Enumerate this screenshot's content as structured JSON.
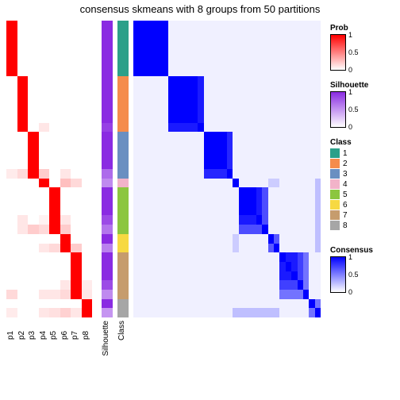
{
  "title": "consensus skmeans with 8 groups from 50 partitions",
  "colors": {
    "prob_scale": [
      "#ffffff",
      "#ff0000"
    ],
    "sil_scale": [
      "#ffffff",
      "#8a2be2"
    ],
    "cons_scale": [
      "#ffffff",
      "#0000ff"
    ],
    "classes": {
      "1": "#2ca089",
      "2": "#f58c4c",
      "3": "#6a8fc1",
      "4": "#f2b3c9",
      "5": "#8cc63f",
      "6": "#f7d942",
      "7": "#c69c6d",
      "8": "#a6a6a6"
    }
  },
  "group_sizes": [
    6,
    6,
    5,
    1,
    5,
    2,
    5,
    2
  ],
  "n_samples": 32,
  "p_labels": [
    "p1",
    "p2",
    "p3",
    "p4",
    "p5",
    "p6",
    "p7",
    "p8"
  ],
  "anno_labels": {
    "sil": "Silhouette",
    "class": "Class"
  },
  "prob_matrix": {
    "note": "rows grouped by class; values 0-1 along 8 columns p1..p8",
    "diag_value": 1.0,
    "offdiag_rows": [
      [
        1,
        0,
        0,
        0,
        0,
        0,
        0,
        0
      ],
      [
        1,
        0,
        0,
        0,
        0,
        0,
        0,
        0
      ],
      [
        1,
        0,
        0,
        0,
        0,
        0,
        0,
        0
      ],
      [
        1,
        0,
        0,
        0,
        0,
        0,
        0,
        0
      ],
      [
        1,
        0,
        0,
        0,
        0,
        0,
        0,
        0
      ],
      [
        1,
        0,
        0,
        0,
        0,
        0,
        0,
        0
      ],
      [
        0,
        1,
        0,
        0,
        0,
        0,
        0,
        0
      ],
      [
        0,
        1,
        0,
        0,
        0,
        0,
        0,
        0
      ],
      [
        0,
        1,
        0,
        0,
        0,
        0,
        0,
        0
      ],
      [
        0,
        1,
        0,
        0,
        0,
        0,
        0,
        0
      ],
      [
        0,
        1,
        0,
        0,
        0,
        0,
        0,
        0
      ],
      [
        0,
        1,
        0,
        0.1,
        0,
        0,
        0,
        0
      ],
      [
        0,
        0,
        1,
        0,
        0,
        0,
        0,
        0
      ],
      [
        0,
        0,
        1,
        0,
        0,
        0,
        0,
        0
      ],
      [
        0,
        0,
        1,
        0,
        0,
        0,
        0,
        0
      ],
      [
        0,
        0,
        1,
        0,
        0,
        0,
        0,
        0
      ],
      [
        0.08,
        0.15,
        1,
        0.2,
        0,
        0.1,
        0,
        0
      ],
      [
        0,
        0,
        0,
        1,
        0,
        0.25,
        0.15,
        0
      ],
      [
        0,
        0,
        0,
        0,
        1,
        0,
        0,
        0
      ],
      [
        0,
        0,
        0,
        0,
        1,
        0,
        0,
        0
      ],
      [
        0,
        0,
        0,
        0,
        1,
        0,
        0,
        0
      ],
      [
        0,
        0.1,
        0,
        0.05,
        1,
        0.1,
        0,
        0
      ],
      [
        0,
        0.1,
        0.2,
        0.15,
        1,
        0.2,
        0,
        0
      ],
      [
        0,
        0,
        0,
        0,
        0,
        1,
        0,
        0
      ],
      [
        0,
        0,
        0,
        0.1,
        0.15,
        1,
        0.2,
        0
      ],
      [
        0,
        0,
        0,
        0,
        0,
        0,
        1,
        0
      ],
      [
        0,
        0,
        0,
        0,
        0,
        0,
        1,
        0
      ],
      [
        0,
        0,
        0,
        0,
        0,
        0,
        1,
        0
      ],
      [
        0,
        0,
        0,
        0,
        0,
        0.1,
        1,
        0.08
      ],
      [
        0.15,
        0,
        0,
        0.1,
        0.1,
        0.15,
        1,
        0.1
      ],
      [
        0,
        0,
        0,
        0,
        0,
        0,
        0,
        1
      ],
      [
        0.08,
        0,
        0,
        0.1,
        0.12,
        0.18,
        0.1,
        1
      ]
    ]
  },
  "silhouette": [
    1,
    1,
    1,
    1,
    1,
    1,
    1,
    1,
    1,
    1,
    1,
    0.9,
    1,
    1,
    1,
    1,
    0.7,
    0.55,
    1,
    1,
    1,
    0.85,
    0.65,
    1,
    0.6,
    1,
    1,
    1,
    0.85,
    0.55,
    1,
    0.5
  ],
  "consensus_blocks": [
    {
      "class": 1,
      "block": [
        [
          1,
          1,
          1,
          1,
          1,
          1
        ],
        [
          1,
          1,
          1,
          1,
          1,
          1
        ],
        [
          1,
          1,
          1,
          1,
          1,
          1
        ],
        [
          1,
          1,
          1,
          1,
          1,
          1
        ],
        [
          1,
          1,
          1,
          1,
          1,
          1
        ],
        [
          1,
          1,
          1,
          1,
          1,
          1
        ]
      ]
    },
    {
      "class": 2,
      "block": [
        [
          1,
          1,
          1,
          1,
          1,
          0.9
        ],
        [
          1,
          1,
          1,
          1,
          1,
          0.9
        ],
        [
          1,
          1,
          1,
          1,
          1,
          0.9
        ],
        [
          1,
          1,
          1,
          1,
          1,
          0.9
        ],
        [
          1,
          1,
          1,
          1,
          1,
          0.9
        ],
        [
          0.9,
          0.9,
          0.9,
          0.9,
          0.9,
          1
        ]
      ]
    },
    {
      "class": 3,
      "block": [
        [
          1,
          1,
          1,
          1,
          0.85
        ],
        [
          1,
          1,
          1,
          1,
          0.85
        ],
        [
          1,
          1,
          1,
          1,
          0.85
        ],
        [
          1,
          1,
          1,
          1,
          0.85
        ],
        [
          0.85,
          0.85,
          0.85,
          0.85,
          1
        ]
      ]
    },
    {
      "class": 4,
      "block": [
        [
          1
        ]
      ]
    },
    {
      "class": 5,
      "block": [
        [
          1,
          1,
          1,
          0.9,
          0.7
        ],
        [
          1,
          1,
          1,
          0.9,
          0.7
        ],
        [
          1,
          1,
          1,
          0.9,
          0.7
        ],
        [
          0.9,
          0.9,
          0.9,
          1,
          0.7
        ],
        [
          0.7,
          0.7,
          0.7,
          0.7,
          1
        ]
      ]
    },
    {
      "class": 6,
      "block": [
        [
          1,
          0.65
        ],
        [
          0.65,
          1
        ]
      ]
    },
    {
      "class": 7,
      "block": [
        [
          1,
          0.9,
          0.9,
          0.75,
          0.55
        ],
        [
          0.9,
          1,
          0.9,
          0.75,
          0.55
        ],
        [
          0.9,
          0.9,
          1,
          0.75,
          0.55
        ],
        [
          0.75,
          0.75,
          0.75,
          1,
          0.55
        ],
        [
          0.55,
          0.55,
          0.55,
          0.55,
          1
        ]
      ]
    },
    {
      "class": 8,
      "block": [
        [
          1,
          0.55
        ],
        [
          0.55,
          1
        ]
      ]
    }
  ],
  "off_block_faint": 0.06,
  "cross_hints": [
    {
      "r": 31,
      "cols": [
        17,
        18,
        19,
        20,
        21,
        22,
        23,
        24
      ],
      "v": 0.25
    },
    {
      "r": 17,
      "cols": [
        23,
        24
      ],
      "v": 0.2
    }
  ],
  "legends": {
    "prob": {
      "title": "Prob",
      "ticks": [
        {
          "pos": 0,
          "label": "1"
        },
        {
          "pos": 0.5,
          "label": "0.5"
        },
        {
          "pos": 1,
          "label": "0"
        }
      ]
    },
    "sil": {
      "title": "Silhouette",
      "ticks": [
        {
          "pos": 0,
          "label": "1"
        },
        {
          "pos": 0.5,
          "label": "0.5"
        },
        {
          "pos": 1,
          "label": "0"
        }
      ]
    },
    "class": {
      "title": "Class",
      "items": [
        "1",
        "2",
        "3",
        "4",
        "5",
        "6",
        "7",
        "8"
      ]
    },
    "cons": {
      "title": "Consensus",
      "ticks": [
        {
          "pos": 0,
          "label": "1"
        },
        {
          "pos": 0.5,
          "label": "0.5"
        },
        {
          "pos": 1,
          "label": "0"
        }
      ]
    }
  }
}
